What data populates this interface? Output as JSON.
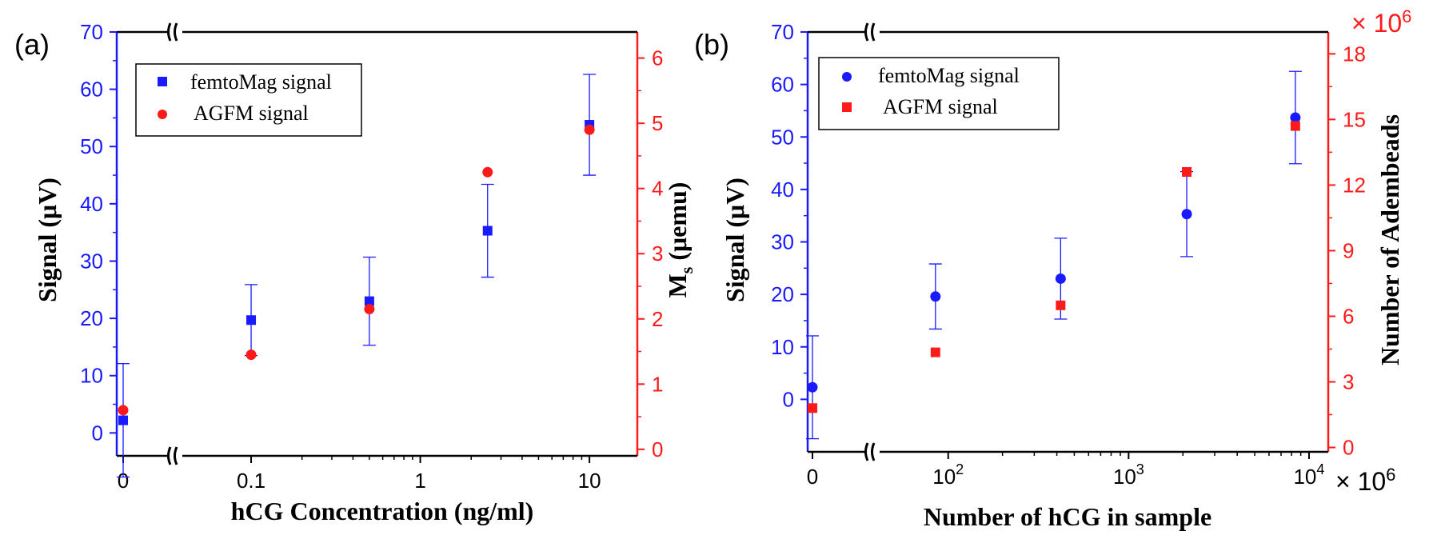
{
  "colors": {
    "left": "#1a1aff",
    "right": "#ff1a1a",
    "axis": "#000000"
  },
  "chart_data": [
    {
      "type": "scatter",
      "panel_label": "(a)",
      "xlabel": "hCG Concentration (ng/ml)",
      "ylabel_left": "Signal (μV)",
      "ylabel_right_main": "M",
      "ylabel_right_sub": "s",
      "ylabel_right_tail": " (μemu)",
      "x_ticks": [
        "0",
        "0.1",
        "1",
        "10"
      ],
      "y_left_ticks": [
        "0",
        "10",
        "20",
        "30",
        "40",
        "50",
        "60",
        "70"
      ],
      "y_right_ticks": [
        "0",
        "1",
        "2",
        "3",
        "4",
        "5",
        "6"
      ],
      "ylim_left": [
        -4,
        70
      ],
      "ylim_right": [
        -0.1,
        6.4
      ],
      "legend": [
        "femtoMag signal",
        "AGFM signal"
      ],
      "series": [
        {
          "name": "femtoMag signal",
          "axis": "left",
          "marker": "square",
          "x": [
            0,
            0.1,
            0.5,
            2.5,
            10
          ],
          "y": [
            2.2,
            19.7,
            23.0,
            35.3,
            53.8
          ],
          "err": [
            9.9,
            6.2,
            7.7,
            8.1,
            8.8
          ]
        },
        {
          "name": "AGFM signal",
          "axis": "right",
          "marker": "circle",
          "x": [
            0,
            0.1,
            0.5,
            2.5,
            10
          ],
          "y": [
            0.6,
            1.45,
            2.15,
            4.25,
            4.9
          ]
        }
      ]
    },
    {
      "type": "scatter",
      "panel_label": "(b)",
      "xlabel": "Number of hCG in sample",
      "ylabel_left": "Signal (μV)",
      "ylabel_right": "Number of  Adembeads",
      "x_ticks": [
        {
          "base": "0",
          "exp": ""
        },
        {
          "base": "10",
          "exp": "2"
        },
        {
          "base": "10",
          "exp": "3"
        },
        {
          "base": "10",
          "exp": "4"
        }
      ],
      "x_multiplier": "× 10",
      "x_multiplier_exp": "6",
      "y_right_multiplier": "× 10",
      "y_right_multiplier_exp": "6",
      "y_left_ticks": [
        "0",
        "10",
        "20",
        "30",
        "40",
        "50",
        "60",
        "70"
      ],
      "y_right_ticks": [
        "0",
        "3",
        "6",
        "9",
        "12",
        "15",
        "18"
      ],
      "ylim_left": [
        -10,
        70
      ],
      "ylim_right": [
        -0.2,
        19
      ],
      "legend": [
        "femtoMag signal",
        "AGFM signal"
      ],
      "series": [
        {
          "name": "femtoMag signal",
          "axis": "left",
          "marker": "circle",
          "x": [
            0,
            85,
            420,
            2100,
            8400
          ],
          "y": [
            2.3,
            19.6,
            23.0,
            35.3,
            53.7
          ],
          "err": [
            9.8,
            6.2,
            7.7,
            8.1,
            8.8
          ]
        },
        {
          "name": "AGFM signal",
          "axis": "right",
          "marker": "square",
          "x": [
            0,
            85,
            420,
            2100,
            8400
          ],
          "y": [
            1.8,
            4.35,
            6.5,
            12.6,
            14.7
          ]
        }
      ]
    }
  ]
}
